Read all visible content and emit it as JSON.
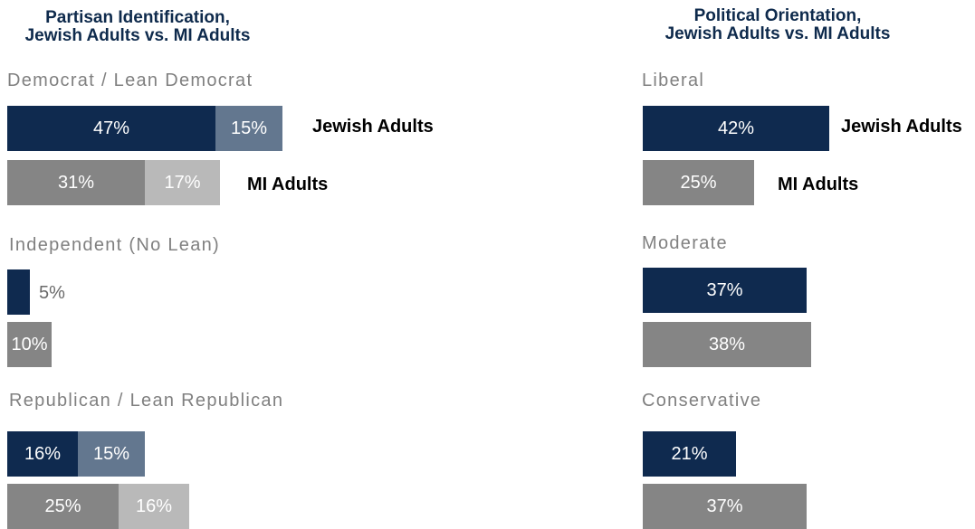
{
  "chart_data": [
    {
      "type": "bar",
      "orientation": "horizontal",
      "stacked": true,
      "title": "Partisan Identification,\nJewish Adults vs. MI Adults",
      "title_lines": [
        "Partisan Identification,",
        "Jewish Adults vs. MI Adults"
      ],
      "series_labels": [
        "Jewish Adults",
        "MI Adults"
      ],
      "categories": [
        {
          "label": "Democrat / Lean Democrat",
          "rows": [
            {
              "series": "Jewish Adults",
              "segments": [
                {
                  "value": 47,
                  "label": "47%",
                  "color": "#0f2a4f"
                },
                {
                  "value": 15,
                  "label": "15%",
                  "color": "#63778f"
                }
              ]
            },
            {
              "series": "MI Adults",
              "segments": [
                {
                  "value": 31,
                  "label": "31%",
                  "color": "#858585"
                },
                {
                  "value": 17,
                  "label": "17%",
                  "color": "#b9b9b9"
                }
              ]
            }
          ]
        },
        {
          "label": "Independent (No Lean)",
          "rows": [
            {
              "series": "Jewish Adults",
              "segments": [
                {
                  "value": 5,
                  "label": "5%",
                  "color": "#0f2a4f"
                }
              ]
            },
            {
              "series": "MI Adults",
              "segments": [
                {
                  "value": 10,
                  "label": "10%",
                  "color": "#858585"
                }
              ]
            }
          ]
        },
        {
          "label": "Republican / Lean Republican",
          "rows": [
            {
              "series": "Jewish Adults",
              "segments": [
                {
                  "value": 16,
                  "label": "16%",
                  "color": "#0f2a4f"
                },
                {
                  "value": 15,
                  "label": "15%",
                  "color": "#63778f"
                }
              ]
            },
            {
              "series": "MI Adults",
              "segments": [
                {
                  "value": 25,
                  "label": "25%",
                  "color": "#858585"
                },
                {
                  "value": 16,
                  "label": "16%",
                  "color": "#b9b9b9"
                }
              ]
            }
          ]
        }
      ]
    },
    {
      "type": "bar",
      "orientation": "horizontal",
      "stacked": false,
      "title": "Political Orientation,\nJewish Adults vs. MI Adults",
      "title_lines": [
        "Political Orientation,",
        "Jewish Adults vs. MI Adults"
      ],
      "series_labels": [
        "Jewish Adults",
        "MI Adults"
      ],
      "categories": [
        {
          "label": "Liberal",
          "rows": [
            {
              "series": "Jewish Adults",
              "segments": [
                {
                  "value": 42,
                  "label": "42%",
                  "color": "#0f2a4f"
                }
              ]
            },
            {
              "series": "MI Adults",
              "segments": [
                {
                  "value": 25,
                  "label": "25%",
                  "color": "#858585"
                }
              ]
            }
          ]
        },
        {
          "label": "Moderate",
          "rows": [
            {
              "series": "Jewish Adults",
              "segments": [
                {
                  "value": 37,
                  "label": "37%",
                  "color": "#0f2a4f"
                }
              ]
            },
            {
              "series": "MI Adults",
              "segments": [
                {
                  "value": 38,
                  "label": "38%",
                  "color": "#858585"
                }
              ]
            }
          ]
        },
        {
          "label": "Conservative",
          "rows": [
            {
              "series": "Jewish Adults",
              "segments": [
                {
                  "value": 21,
                  "label": "21%",
                  "color": "#0f2a4f"
                }
              ]
            },
            {
              "series": "MI Adults",
              "segments": [
                {
                  "value": 37,
                  "label": "37%",
                  "color": "#858585"
                }
              ]
            }
          ]
        }
      ]
    }
  ]
}
